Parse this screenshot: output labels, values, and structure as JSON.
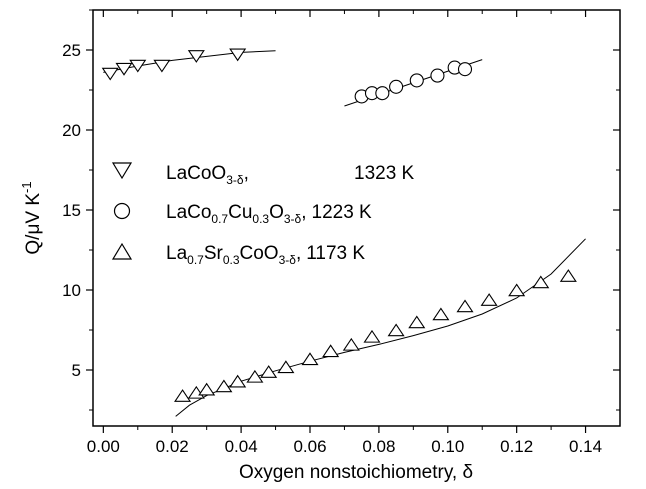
{
  "chart_data": {
    "type": "scatter",
    "xlabel": "Oxygen nonstoichiometry, δ",
    "ylabel": "Q/μV K",
    "ylabel_sup": "-1",
    "xlim": [
      -0.003,
      0.15
    ],
    "ylim": [
      1.5,
      27.5
    ],
    "x_ticks": [
      0.0,
      0.02,
      0.04,
      0.06,
      0.08,
      0.1,
      0.12,
      0.14
    ],
    "x_tick_labels": [
      "0.00",
      "0.02",
      "0.04",
      "0.06",
      "0.08",
      "0.10",
      "0.12",
      "0.14"
    ],
    "y_ticks": [
      5,
      10,
      15,
      20,
      25
    ],
    "y_tick_labels": [
      "5",
      "10",
      "15",
      "20",
      "25"
    ],
    "grid": false,
    "legend_position": "middle-left",
    "series": [
      {
        "marker": "triangle-down",
        "legend": {
          "main": "LaCoO",
          "sub": "3-δ",
          "tail": ",",
          "temp": "1323 K"
        },
        "x": [
          0.002,
          0.006,
          0.01,
          0.017,
          0.027,
          0.039
        ],
        "y": [
          23.6,
          23.9,
          24.1,
          24.1,
          24.7,
          24.8
        ],
        "fit": {
          "x": [
            0.0,
            0.01,
            0.02,
            0.03,
            0.04,
            0.05
          ],
          "y": [
            23.6,
            24.0,
            24.35,
            24.6,
            24.85,
            24.95
          ]
        }
      },
      {
        "marker": "circle",
        "legend": {
          "main": "LaCo",
          "sub1": "0.7",
          "mid": "Cu",
          "sub2": "0.3",
          "mid2": "O",
          "sub3": "3-δ",
          "tail": ",",
          "temp": "1223 K"
        },
        "x": [
          0.075,
          0.078,
          0.081,
          0.085,
          0.091,
          0.097,
          0.102,
          0.105
        ],
        "y": [
          22.1,
          22.3,
          22.3,
          22.7,
          23.1,
          23.4,
          23.9,
          23.8
        ],
        "fit": {
          "x": [
            0.07,
            0.11
          ],
          "y": [
            21.5,
            24.4
          ]
        }
      },
      {
        "marker": "triangle-up",
        "legend": {
          "main": "La",
          "sub1": "0.7",
          "mid": "Sr",
          "sub2": "0.3",
          "mid2": "CoO",
          "sub3": "3-δ",
          "tail": ",",
          "temp": "1173 K"
        },
        "x": [
          0.023,
          0.027,
          0.03,
          0.035,
          0.039,
          0.044,
          0.048,
          0.053,
          0.06,
          0.066,
          0.072,
          0.078,
          0.085,
          0.091,
          0.098,
          0.105,
          0.112,
          0.12,
          0.127,
          0.135
        ],
        "y": [
          3.3,
          3.5,
          3.7,
          3.9,
          4.2,
          4.5,
          4.8,
          5.1,
          5.6,
          6.1,
          6.5,
          7.0,
          7.4,
          7.9,
          8.4,
          8.9,
          9.3,
          9.9,
          10.4,
          10.8
        ],
        "fit": {
          "x": [
            0.021,
            0.025,
            0.03,
            0.035,
            0.04,
            0.05,
            0.06,
            0.07,
            0.08,
            0.09,
            0.1,
            0.11,
            0.12,
            0.13,
            0.14
          ],
          "y": [
            2.1,
            2.8,
            3.4,
            3.85,
            4.3,
            4.95,
            5.55,
            6.1,
            6.6,
            7.15,
            7.75,
            8.5,
            9.5,
            11.0,
            13.2
          ]
        }
      }
    ]
  }
}
